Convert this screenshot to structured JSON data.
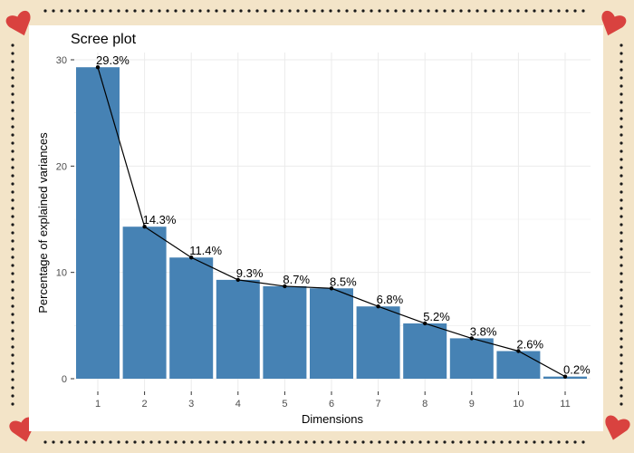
{
  "colors": {
    "page_background": "#f3e4c8",
    "panel_background": "#ffffff",
    "bar_fill": "#4682b4",
    "line": "#000000",
    "grid": "#ebebeb",
    "heart": "#d9423f",
    "dots": "#1a1a1a"
  },
  "decor": {
    "corner_icon": "heart-icon",
    "border_icon": "dotted-border"
  },
  "chart_data": {
    "type": "bar",
    "title": "Scree plot",
    "xlabel": "Dimensions",
    "ylabel": "Percentage of explained variances",
    "categories": [
      "1",
      "2",
      "3",
      "4",
      "5",
      "6",
      "7",
      "8",
      "9",
      "10",
      "11"
    ],
    "values": [
      29.3,
      14.3,
      11.4,
      9.3,
      8.7,
      8.5,
      6.8,
      5.2,
      3.8,
      2.6,
      0.2
    ],
    "value_labels": [
      "29.3%",
      "14.3%",
      "11.4%",
      "9.3%",
      "8.7%",
      "8.5%",
      "6.8%",
      "5.2%",
      "3.8%",
      "2.6%",
      "0.2%"
    ],
    "overlay_line": true,
    "ylim": [
      0,
      30
    ],
    "yticks": [
      0,
      10,
      20,
      30
    ],
    "ytick_labels": [
      "0",
      "10",
      "20",
      "30"
    ],
    "grid": true
  }
}
